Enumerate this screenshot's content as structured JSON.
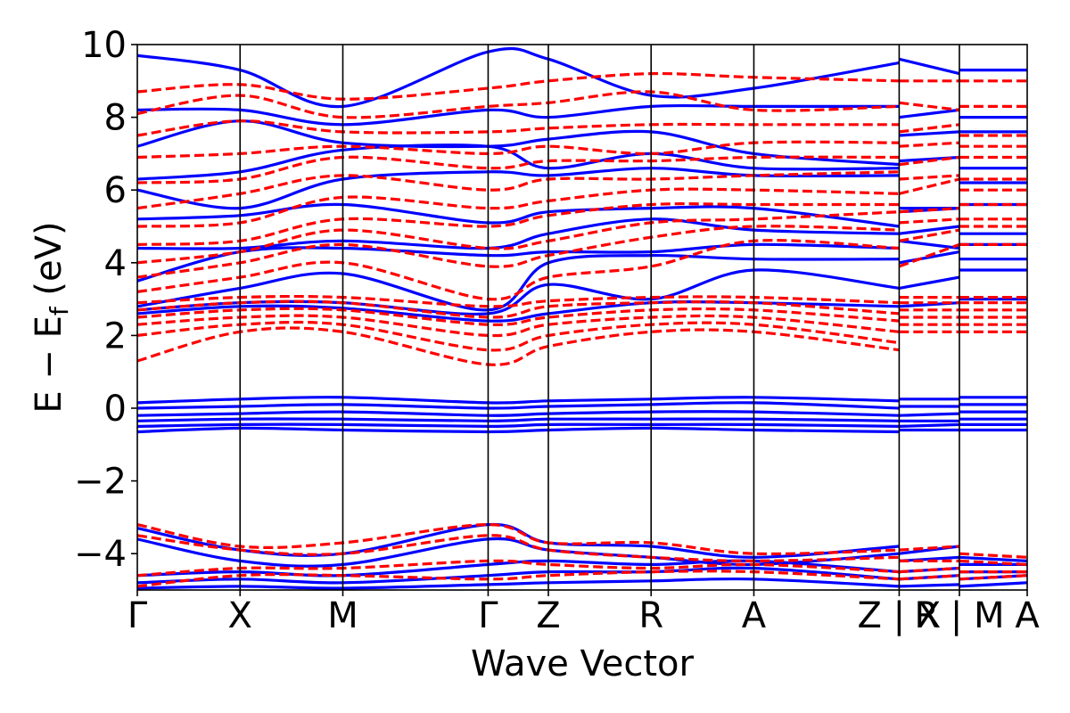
{
  "chart_data": {
    "type": "line",
    "xlabel": "Wave Vector",
    "ylabel": "E − E",
    "ylabel_subscript": "f",
    "ylabel_unit": " (eV)",
    "ylim": [
      -5,
      10
    ],
    "yticks": [
      -4,
      -2,
      0,
      2,
      4,
      6,
      8,
      10
    ],
    "ytick_labels": [
      "−4",
      "−2",
      "0",
      "2",
      "4",
      "6",
      "8",
      "10"
    ],
    "xlim": [
      0,
      8.66
    ],
    "kpoint_labels": [
      {
        "label": "Γ",
        "x": 0
      },
      {
        "label": "X",
        "x": 1
      },
      {
        "label": "M",
        "x": 2
      },
      {
        "label": "Γ",
        "x": 3.414
      },
      {
        "label": "Z",
        "x": 4.0
      },
      {
        "label": "R",
        "x": 5.0
      },
      {
        "label": "A",
        "x": 6.0
      },
      {
        "label": "Z | X",
        "x": 7.414
      },
      {
        "label": "R | M",
        "x": 8.0
      },
      {
        "label": "A",
        "x": 8.66
      }
    ],
    "segment_boundaries": [
      1,
      2,
      3.414,
      4.0,
      5.0,
      6.0,
      7.414,
      8.0
    ],
    "grid": false,
    "legend": "none",
    "series": [
      {
        "color": "#0000ff",
        "style": "solid",
        "x": [
          0,
          1,
          2,
          3.414,
          4.0,
          5.0,
          6.0,
          7.414,
          7.414,
          8.0,
          8.0,
          8.66
        ],
        "bands": [
          [
            -3.3,
            -3.9,
            -4.0,
            -3.2,
            -3.7,
            -3.8,
            -4.1,
            -3.8,
            -4.0,
            -3.8,
            -4.1,
            -4.2
          ],
          [
            -3.6,
            -4.2,
            -4.3,
            -3.6,
            -3.9,
            -4.1,
            -4.3,
            -4.0,
            -4.2,
            -4.1,
            -4.3,
            -4.3
          ],
          [
            -4.6,
            -4.5,
            -4.6,
            -4.3,
            -4.2,
            -4.3,
            -4.2,
            -4.5,
            -4.5,
            -4.4,
            -4.5,
            -4.5
          ],
          [
            -4.8,
            -4.7,
            -4.8,
            -4.6,
            -4.5,
            -4.5,
            -4.4,
            -4.7,
            -4.7,
            -4.6,
            -4.7,
            -4.6
          ],
          [
            -4.95,
            -4.9,
            -4.95,
            -4.85,
            -4.8,
            -4.75,
            -4.7,
            -4.9,
            -4.9,
            -4.85,
            -4.9,
            -4.8
          ],
          [
            -0.65,
            -0.55,
            -0.6,
            -0.65,
            -0.6,
            -0.55,
            -0.6,
            -0.65,
            -0.6,
            -0.6,
            -0.6,
            -0.6
          ],
          [
            -0.5,
            -0.45,
            -0.45,
            -0.5,
            -0.45,
            -0.45,
            -0.45,
            -0.5,
            -0.5,
            -0.45,
            -0.45,
            -0.45
          ],
          [
            -0.35,
            -0.3,
            -0.3,
            -0.35,
            -0.3,
            -0.3,
            -0.3,
            -0.35,
            -0.35,
            -0.35,
            -0.3,
            -0.3
          ],
          [
            -0.2,
            -0.15,
            -0.1,
            -0.2,
            -0.15,
            -0.1,
            -0.1,
            -0.2,
            -0.2,
            -0.15,
            -0.1,
            -0.1
          ],
          [
            0.0,
            0.05,
            0.1,
            0.0,
            0.05,
            0.1,
            0.15,
            0.0,
            0.05,
            0.05,
            0.1,
            0.1
          ],
          [
            0.15,
            0.25,
            0.3,
            0.15,
            0.2,
            0.25,
            0.3,
            0.2,
            0.25,
            0.25,
            0.3,
            0.3
          ],
          [
            2.6,
            2.8,
            2.75,
            2.4,
            2.6,
            2.9,
            2.9,
            2.8,
            2.8,
            2.9,
            3.0,
            3.0
          ],
          [
            2.7,
            2.9,
            2.9,
            2.6,
            3.4,
            3.0,
            3.8,
            3.3,
            3.3,
            3.6,
            3.8,
            3.8
          ],
          [
            2.8,
            3.3,
            3.7,
            2.7,
            4.0,
            4.2,
            4.1,
            4.1,
            4.0,
            4.3,
            4.1,
            4.1
          ],
          [
            3.5,
            4.3,
            4.4,
            4.2,
            4.3,
            4.3,
            4.5,
            4.4,
            4.6,
            4.4,
            4.5,
            4.5
          ],
          [
            4.4,
            4.4,
            4.6,
            4.4,
            4.8,
            5.2,
            4.9,
            4.8,
            4.8,
            5.0,
            4.8,
            4.8
          ],
          [
            5.2,
            5.3,
            5.6,
            5.1,
            5.4,
            5.5,
            5.5,
            5.0,
            5.4,
            5.5,
            5.6,
            5.6
          ],
          [
            6.0,
            5.5,
            6.3,
            6.5,
            6.4,
            6.6,
            6.4,
            6.4,
            5.5,
            5.5,
            6.2,
            6.2
          ],
          [
            6.3,
            6.5,
            7.1,
            7.2,
            6.6,
            7.0,
            6.6,
            6.6,
            6.8,
            6.9,
            6.6,
            6.6
          ],
          [
            7.2,
            7.9,
            7.3,
            7.2,
            7.4,
            7.6,
            7.0,
            6.7,
            7.5,
            7.6,
            7.6,
            7.6
          ],
          [
            8.2,
            8.2,
            7.8,
            8.2,
            8.0,
            8.3,
            8.3,
            8.3,
            8.0,
            8.2,
            8.0,
            8.0
          ],
          [
            9.7,
            9.3,
            8.3,
            9.8,
            9.6,
            8.6,
            8.8,
            9.5,
            9.6,
            9.2,
            9.3,
            9.3
          ]
        ]
      },
      {
        "color": "#ff0000",
        "style": "dashed",
        "x": [
          0,
          1,
          2,
          3.414,
          4.0,
          5.0,
          6.0,
          7.414,
          7.414,
          8.0,
          8.0,
          8.66
        ],
        "bands": [
          [
            -3.2,
            -3.8,
            -3.7,
            -3.2,
            -3.7,
            -3.7,
            -4.0,
            -3.9,
            -3.9,
            -3.8,
            -4.0,
            -4.1
          ],
          [
            -3.5,
            -3.9,
            -4.0,
            -3.5,
            -3.9,
            -4.1,
            -4.2,
            -4.1,
            -4.2,
            -4.2,
            -4.2,
            -4.3
          ],
          [
            -4.6,
            -4.4,
            -4.4,
            -4.2,
            -4.3,
            -4.4,
            -4.3,
            -4.5,
            -4.5,
            -4.4,
            -4.5,
            -4.5
          ],
          [
            -4.9,
            -4.6,
            -4.6,
            -4.7,
            -4.6,
            -4.5,
            -4.5,
            -4.7,
            -4.7,
            -4.6,
            -4.7,
            -4.6
          ],
          [
            1.3,
            2.1,
            2.1,
            1.2,
            1.7,
            2.1,
            2.1,
            1.6,
            2.1,
            2.1,
            2.1,
            2.1
          ],
          [
            2.0,
            2.3,
            2.3,
            1.6,
            2.0,
            2.3,
            2.3,
            1.8,
            2.3,
            2.3,
            2.3,
            2.3
          ],
          [
            2.3,
            2.5,
            2.5,
            2.0,
            2.3,
            2.5,
            2.5,
            2.1,
            2.5,
            2.5,
            2.5,
            2.5
          ],
          [
            2.5,
            2.7,
            2.7,
            2.3,
            2.5,
            2.7,
            2.7,
            2.4,
            2.7,
            2.7,
            2.7,
            2.7
          ],
          [
            2.7,
            2.9,
            2.9,
            2.5,
            2.8,
            2.9,
            2.9,
            2.6,
            2.9,
            2.9,
            2.9,
            2.9
          ],
          [
            2.9,
            3.05,
            3.05,
            2.8,
            2.95,
            3.05,
            3.05,
            2.9,
            3.05,
            3.05,
            3.05,
            3.05
          ],
          [
            3.2,
            3.6,
            4.0,
            3.0,
            3.6,
            3.9,
            4.6,
            4.4,
            3.9,
            4.5,
            4.5,
            4.5
          ],
          [
            3.6,
            4.0,
            4.5,
            3.9,
            4.2,
            4.7,
            5.0,
            4.9,
            4.6,
            4.9,
            5.0,
            5.0
          ],
          [
            4.0,
            4.3,
            4.9,
            4.4,
            4.6,
            5.1,
            5.2,
            5.4,
            5.1,
            5.2,
            5.2,
            5.2
          ],
          [
            4.5,
            4.6,
            5.2,
            5.0,
            5.3,
            5.6,
            5.6,
            5.6,
            5.4,
            5.5,
            5.6,
            5.6
          ],
          [
            5.0,
            5.1,
            5.8,
            5.5,
            5.7,
            6.0,
            6.0,
            5.9,
            5.9,
            6.3,
            6.0,
            6.0
          ],
          [
            5.5,
            5.9,
            6.4,
            6.0,
            6.3,
            6.3,
            6.4,
            6.5,
            6.3,
            6.4,
            6.3,
            6.3
          ],
          [
            6.2,
            6.3,
            6.9,
            6.6,
            6.8,
            6.8,
            6.9,
            6.9,
            6.7,
            6.9,
            6.9,
            6.9
          ],
          [
            6.9,
            7.0,
            7.2,
            7.0,
            7.2,
            7.0,
            7.3,
            7.3,
            7.2,
            7.3,
            7.2,
            7.2
          ],
          [
            7.5,
            7.9,
            7.6,
            7.6,
            7.7,
            7.8,
            7.8,
            7.8,
            7.6,
            7.8,
            7.5,
            7.5
          ],
          [
            8.1,
            8.6,
            8.0,
            8.3,
            8.4,
            8.7,
            8.2,
            8.3,
            8.4,
            8.2,
            8.3,
            8.3
          ],
          [
            8.7,
            8.9,
            8.5,
            8.8,
            9.0,
            9.2,
            9.1,
            9.0,
            9.0,
            9.0,
            9.0,
            9.0
          ]
        ]
      }
    ]
  }
}
